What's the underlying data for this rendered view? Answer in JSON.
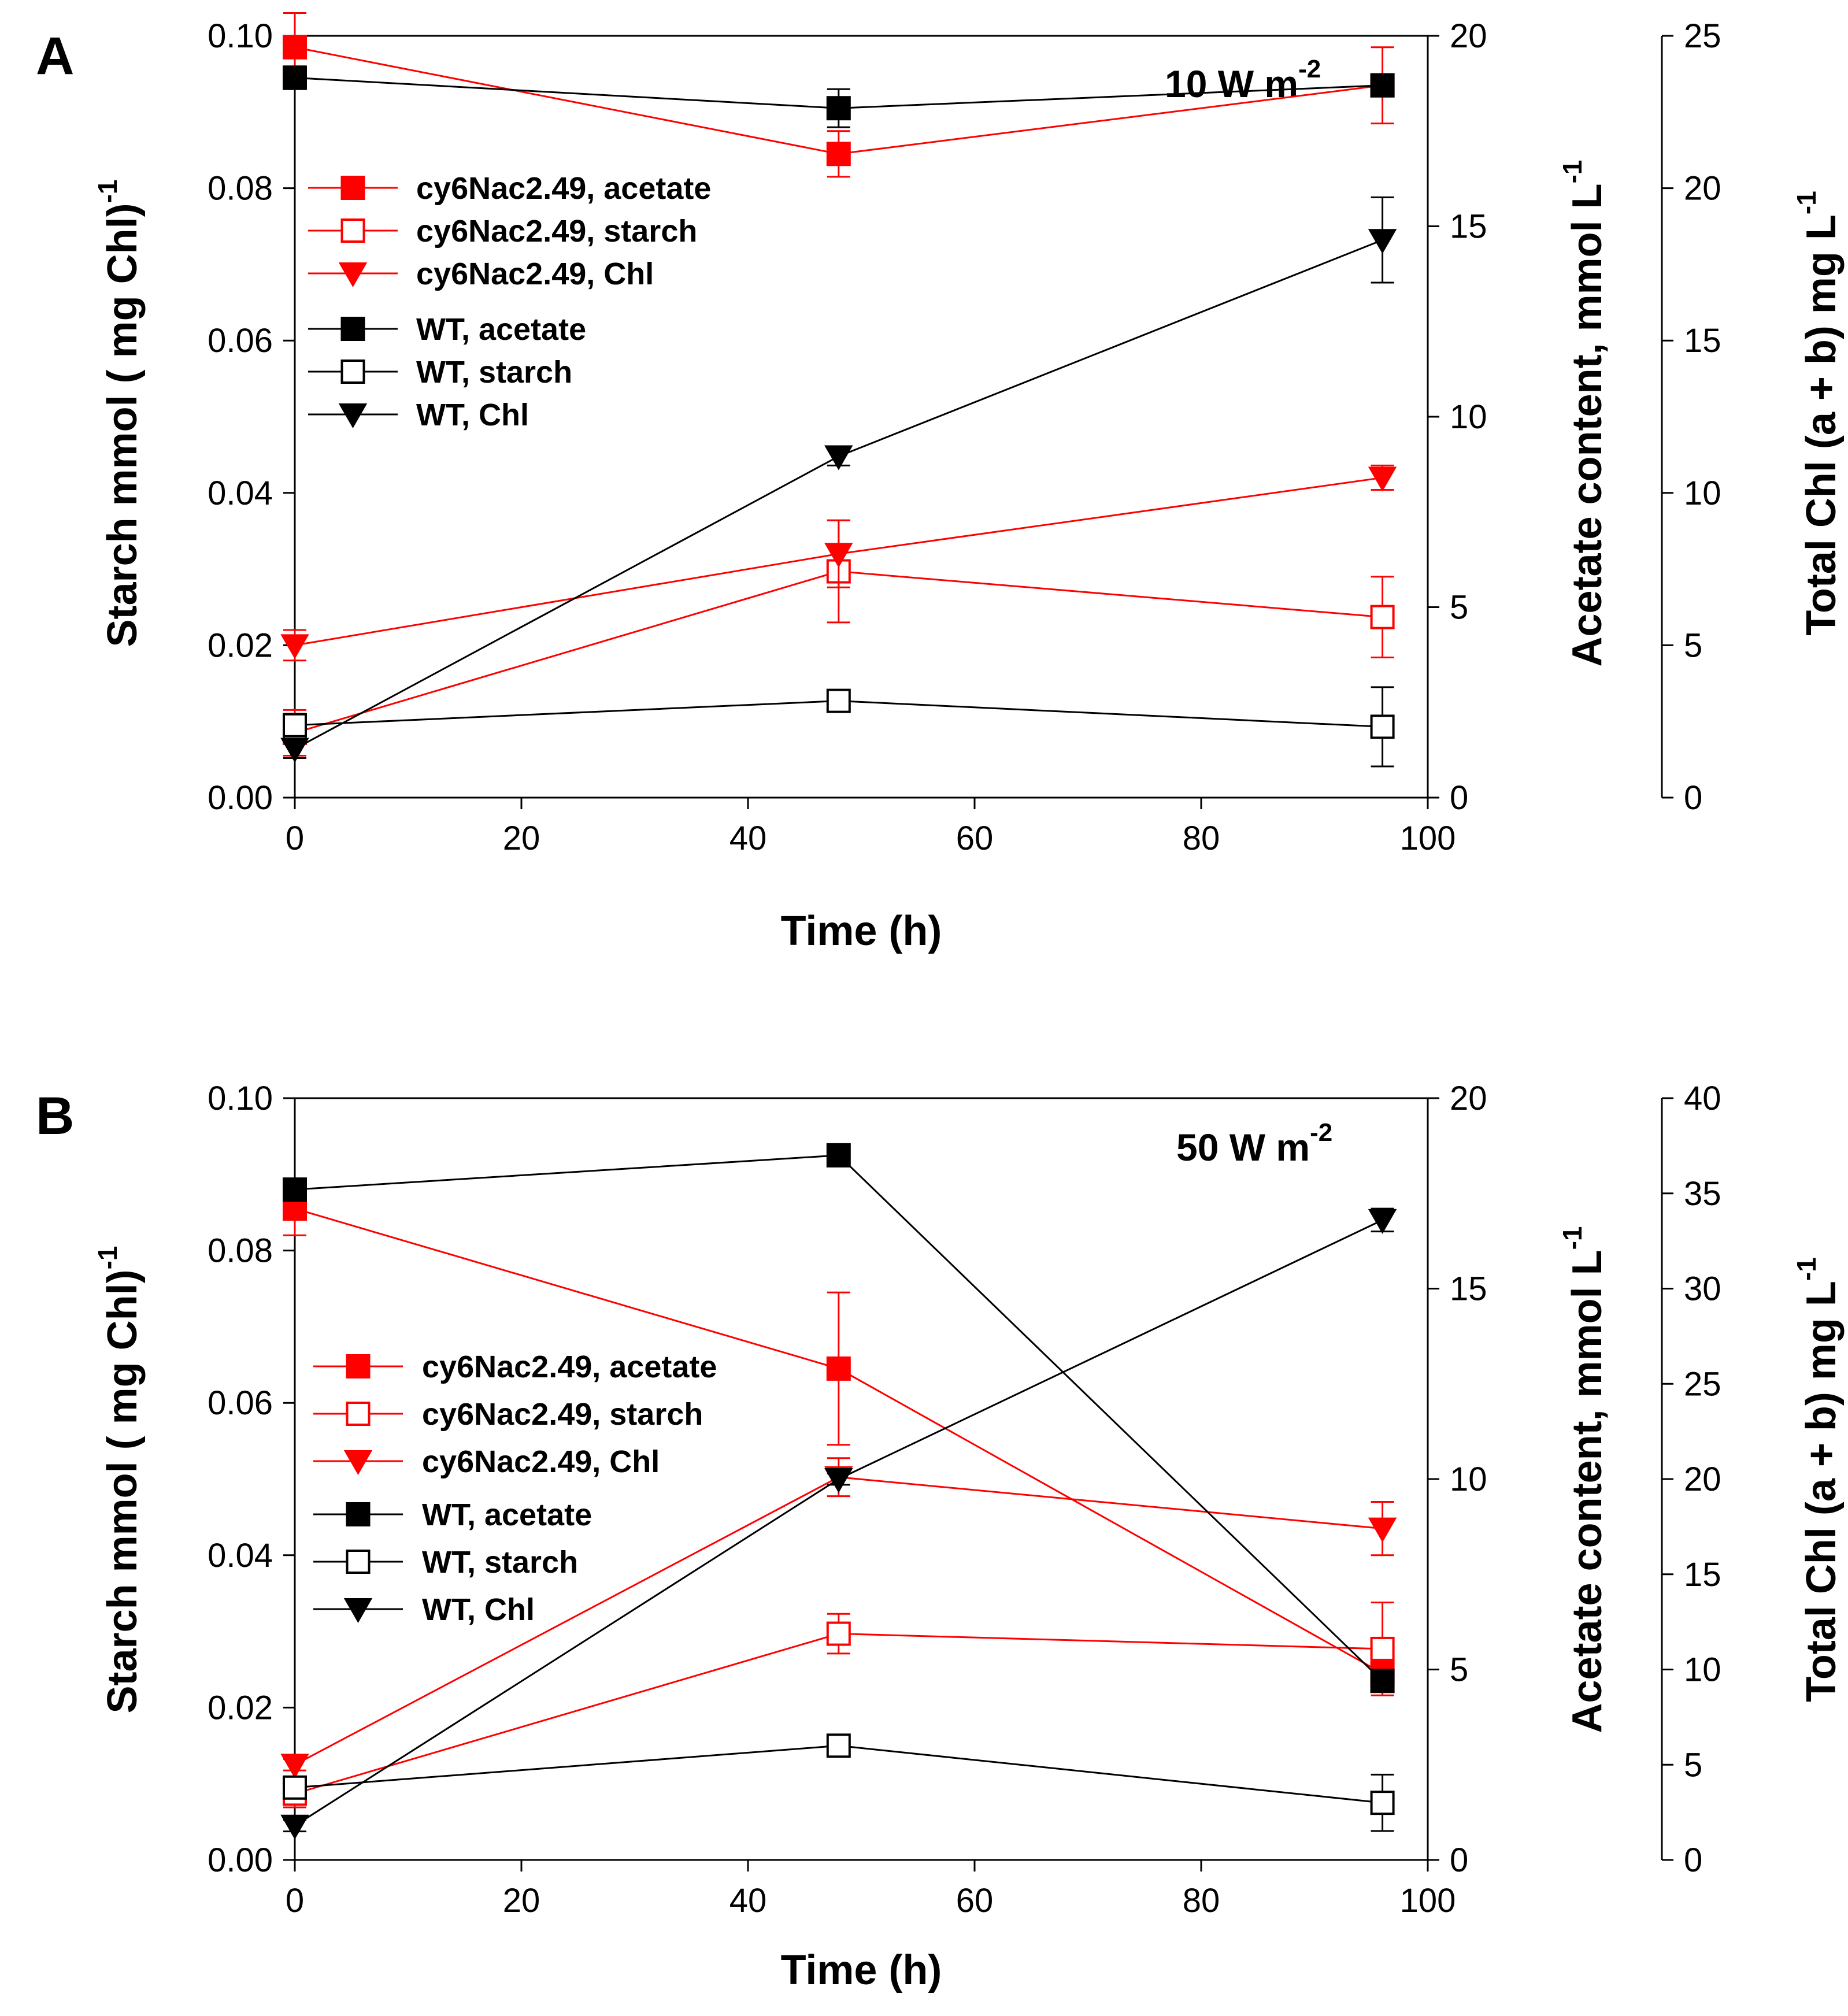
{
  "colors": {
    "red": "#ff0000",
    "black": "#000000"
  },
  "chart_data": [
    {
      "type": "line",
      "panel_label": "A",
      "annotation": {
        "text": "10 W m",
        "sup": "-2"
      },
      "xlabel": "Time (h)",
      "ylabel": {
        "text": "Starch mmol ( mg Chl)",
        "sup": "-1"
      },
      "y2label": {
        "text": "Acetate content, mmol L",
        "sup": "-1"
      },
      "y3label": {
        "text": "Total Chl (a + b) mg L",
        "sup": "-1"
      },
      "xlim": [
        0,
        100
      ],
      "ylim": [
        0,
        0.1
      ],
      "y2lim": [
        0,
        20
      ],
      "y3lim": [
        0,
        25
      ],
      "xticks": [
        "0",
        "20",
        "40",
        "60",
        "80",
        "100"
      ],
      "xtick_values": [
        0,
        20,
        40,
        60,
        80,
        100
      ],
      "yticks": [
        "0.00",
        "0.02",
        "0.04",
        "0.06",
        "0.08",
        "0.10"
      ],
      "ytick_values": [
        0,
        0.02,
        0.04,
        0.06,
        0.08,
        0.1
      ],
      "y2ticks": [
        "0",
        "5",
        "10",
        "15",
        "20"
      ],
      "y2tick_values": [
        0,
        5,
        10,
        15,
        20
      ],
      "y3ticks": [
        "0",
        "5",
        "10",
        "15",
        "20",
        "25"
      ],
      "y3tick_values": [
        0,
        5,
        10,
        15,
        20,
        25
      ],
      "series": [
        {
          "name": "cy6Nac2.49, acetate",
          "color": "red",
          "marker": "square",
          "filled": true,
          "axis": "y2",
          "x": [
            0,
            48,
            96
          ],
          "values": [
            19.7,
            16.9,
            18.7
          ],
          "err": [
            0.9,
            0.6,
            1.0
          ]
        },
        {
          "name": "cy6Nac2.49, starch",
          "color": "red",
          "marker": "square",
          "filled": false,
          "axis": "y",
          "x": [
            0,
            48,
            96
          ],
          "values": [
            0.0085,
            0.0297,
            0.0237
          ],
          "err": [
            0.003,
            0.0067,
            0.0053
          ]
        },
        {
          "name": "cy6Nac2.49, Chl",
          "color": "red",
          "marker": "triangle-down",
          "filled": true,
          "axis": "y3",
          "x": [
            0,
            48,
            96
          ],
          "values": [
            5.0,
            8.0,
            10.5
          ],
          "err": [
            0.5,
            1.1,
            0.4
          ]
        },
        {
          "name": "WT, acetate",
          "color": "black",
          "marker": "square",
          "filled": true,
          "axis": "y2",
          "x": [
            0,
            48,
            96
          ],
          "values": [
            18.9,
            18.1,
            18.7
          ],
          "err": [
            0.3,
            0.5,
            0.2
          ]
        },
        {
          "name": "WT, starch",
          "color": "black",
          "marker": "square",
          "filled": false,
          "axis": "y",
          "x": [
            0,
            48,
            96
          ],
          "values": [
            0.0095,
            0.0127,
            0.0093
          ],
          "err": [
            0.0015,
            0.0008,
            0.0052
          ]
        },
        {
          "name": "WT, Chl",
          "color": "black",
          "marker": "triangle-down",
          "filled": true,
          "axis": "y3",
          "x": [
            0,
            48,
            96
          ],
          "values": [
            1.6,
            11.2,
            18.3
          ],
          "err": [
            0.3,
            0.3,
            1.4
          ]
        }
      ]
    },
    {
      "type": "line",
      "panel_label": "B",
      "annotation": {
        "text": "50 W m",
        "sup": "-2"
      },
      "xlabel": "Time (h)",
      "ylabel": {
        "text": "Starch mmol ( mg Chl)",
        "sup": "-1"
      },
      "y2label": {
        "text": "Acetate content, mmol L",
        "sup": "-1"
      },
      "y3label": {
        "text": "Total Chl (a + b) mg L",
        "sup": "-1"
      },
      "xlim": [
        0,
        100
      ],
      "ylim": [
        0,
        0.1
      ],
      "y2lim": [
        0,
        20
      ],
      "y3lim": [
        0,
        40
      ],
      "xticks": [
        "0",
        "20",
        "40",
        "60",
        "80",
        "100"
      ],
      "xtick_values": [
        0,
        20,
        40,
        60,
        80,
        100
      ],
      "yticks": [
        "0.00",
        "0.02",
        "0.04",
        "0.06",
        "0.08",
        "0.10"
      ],
      "ytick_values": [
        0,
        0.02,
        0.04,
        0.06,
        0.08,
        0.1
      ],
      "y2ticks": [
        "0",
        "5",
        "10",
        "15",
        "20"
      ],
      "y2tick_values": [
        0,
        5,
        10,
        15,
        20
      ],
      "y3ticks": [
        "0",
        "5",
        "10",
        "15",
        "20",
        "25",
        "30",
        "35",
        "40"
      ],
      "y3tick_values": [
        0,
        5,
        10,
        15,
        20,
        25,
        30,
        35,
        40
      ],
      "series": [
        {
          "name": "cy6Nac2.49, acetate",
          "color": "red",
          "marker": "square",
          "filled": true,
          "axis": "y2",
          "x": [
            0,
            48,
            96
          ],
          "values": [
            17.1,
            12.9,
            4.9
          ],
          "err": [
            0.7,
            2.0,
            0.3
          ]
        },
        {
          "name": "cy6Nac2.49, starch",
          "color": "red",
          "marker": "square",
          "filled": false,
          "axis": "y",
          "x": [
            0,
            48,
            96
          ],
          "values": [
            0.0087,
            0.0297,
            0.0277
          ],
          "err": [
            0.0018,
            0.0026,
            0.0061
          ]
        },
        {
          "name": "cy6Nac2.49, Chl",
          "color": "red",
          "marker": "triangle-down",
          "filled": true,
          "axis": "y3",
          "x": [
            0,
            48,
            96
          ],
          "values": [
            5.0,
            20.1,
            17.4
          ],
          "err": [
            0.3,
            1.0,
            1.4
          ]
        },
        {
          "name": "WT, acetate",
          "color": "black",
          "marker": "square",
          "filled": true,
          "axis": "y2",
          "x": [
            0,
            48,
            96
          ],
          "values": [
            17.6,
            18.5,
            4.7
          ],
          "err": [
            0.2,
            0.2,
            0.2
          ]
        },
        {
          "name": "WT, starch",
          "color": "black",
          "marker": "square",
          "filled": false,
          "axis": "y",
          "x": [
            0,
            48,
            96
          ],
          "values": [
            0.0095,
            0.015,
            0.0075
          ],
          "err": [
            0.0008,
            0.0008,
            0.0037
          ]
        },
        {
          "name": "WT, Chl",
          "color": "black",
          "marker": "triangle-down",
          "filled": true,
          "axis": "y3",
          "x": [
            0,
            48,
            96
          ],
          "values": [
            1.8,
            20.0,
            33.6
          ],
          "err": [
            0.3,
            0.3,
            0.6
          ]
        }
      ]
    }
  ]
}
